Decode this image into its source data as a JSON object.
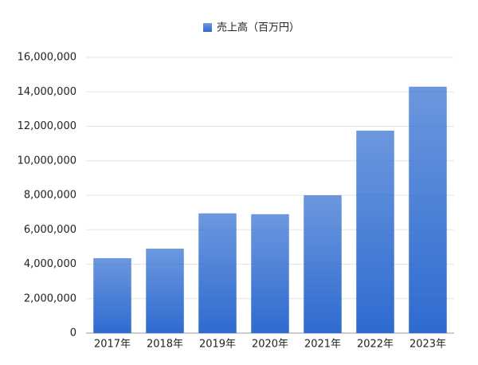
{
  "chart_data": {
    "type": "bar",
    "categories": [
      "2017年",
      "2018年",
      "2019年",
      "2020年",
      "2021年",
      "2022年",
      "2023年"
    ],
    "series": [
      {
        "name": "売上高（百万円）",
        "color": "#2e6bd0",
        "values": [
          4350000,
          4900000,
          6950000,
          6900000,
          8000000,
          11750000,
          14300000
        ]
      }
    ],
    "ylim": [
      0,
      16000000
    ],
    "yticks": [
      0,
      {
        "value": 2000000,
        "label": "2,000,000"
      },
      {
        "value": 4000000,
        "label": "4,000,000"
      },
      {
        "value": 6000000,
        "label": "6,000,000"
      },
      {
        "value": 8000000,
        "label": "8,000,000"
      },
      {
        "value": 10000000,
        "label": "10,000,000"
      },
      {
        "value": 12000000,
        "label": "12,000,000"
      },
      {
        "value": 14000000,
        "label": "14,000,000"
      },
      {
        "value": 16000000,
        "label": "16,000,000"
      }
    ],
    "grid": true,
    "legend": "top"
  }
}
